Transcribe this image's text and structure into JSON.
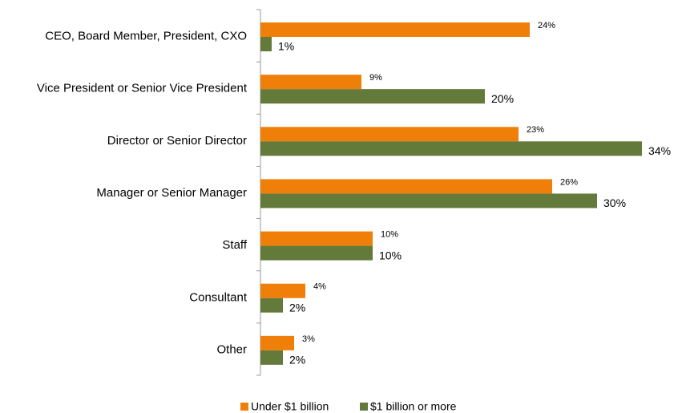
{
  "chart_data": {
    "type": "bar",
    "orientation": "horizontal",
    "categories": [
      "CEO, Board Member, President, CXO",
      "Vice President or Senior Vice President",
      "Director or Senior Director",
      "Manager or Senior Manager",
      "Staff",
      "Consultant",
      "Other"
    ],
    "series": [
      {
        "name": "Under $1 billion",
        "color": "#f07f09",
        "values": [
          24,
          9,
          23,
          26,
          10,
          4,
          3
        ],
        "value_labels": [
          "24%",
          "9%",
          "23%",
          "26%",
          "10%",
          "4%",
          "3%"
        ]
      },
      {
        "name": "$1 billion or more",
        "color": "#647a3a",
        "values": [
          1,
          20,
          34,
          30,
          10,
          2,
          2
        ],
        "value_labels": [
          "1%",
          "20%",
          "34%",
          "30%",
          "10%",
          "2%",
          "2%"
        ]
      }
    ],
    "legend": "bottom"
  }
}
